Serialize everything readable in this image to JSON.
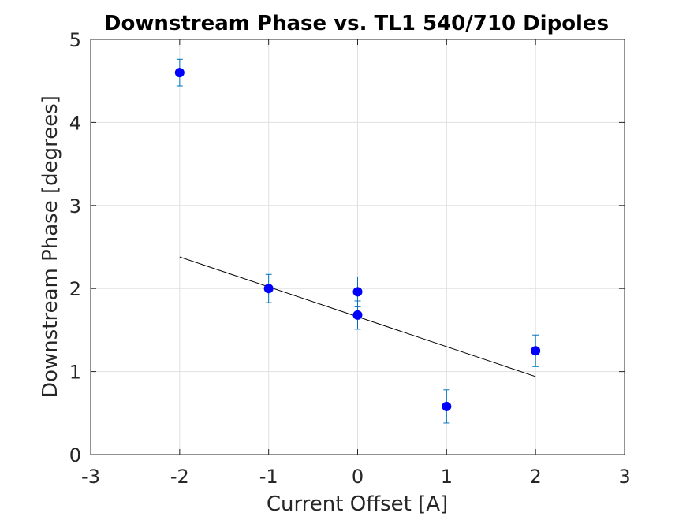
{
  "chart_data": {
    "type": "scatter",
    "title": "Downstream Phase vs. TL1 540/710 Dipoles",
    "xlabel": "Current Offset [A]",
    "ylabel": "Downstream Phase [degrees]",
    "xlim": [
      -3,
      3
    ],
    "ylim": [
      0,
      5
    ],
    "xticks": [
      -3,
      -2,
      -1,
      0,
      1,
      2,
      3
    ],
    "yticks": [
      0,
      1,
      2,
      3,
      4,
      5
    ],
    "xtick_labels": [
      "-3",
      "-2",
      "-1",
      "0",
      "1",
      "2",
      "3"
    ],
    "ytick_labels": [
      "0",
      "1",
      "2",
      "3",
      "4",
      "5"
    ],
    "grid": true,
    "series": [
      {
        "type": "errorbar",
        "marker_color": "#0000ff",
        "errorbar_color": "#0072bd",
        "x": [
          -2,
          -1,
          0,
          0,
          1,
          2
        ],
        "y": [
          4.6,
          2.0,
          1.96,
          1.68,
          0.58,
          1.25
        ],
        "err": [
          0.16,
          0.17,
          0.18,
          0.17,
          0.2,
          0.19
        ]
      },
      {
        "type": "line",
        "line_color": "#000000",
        "x": [
          -2,
          2
        ],
        "y": [
          2.38,
          0.94
        ]
      }
    ]
  }
}
